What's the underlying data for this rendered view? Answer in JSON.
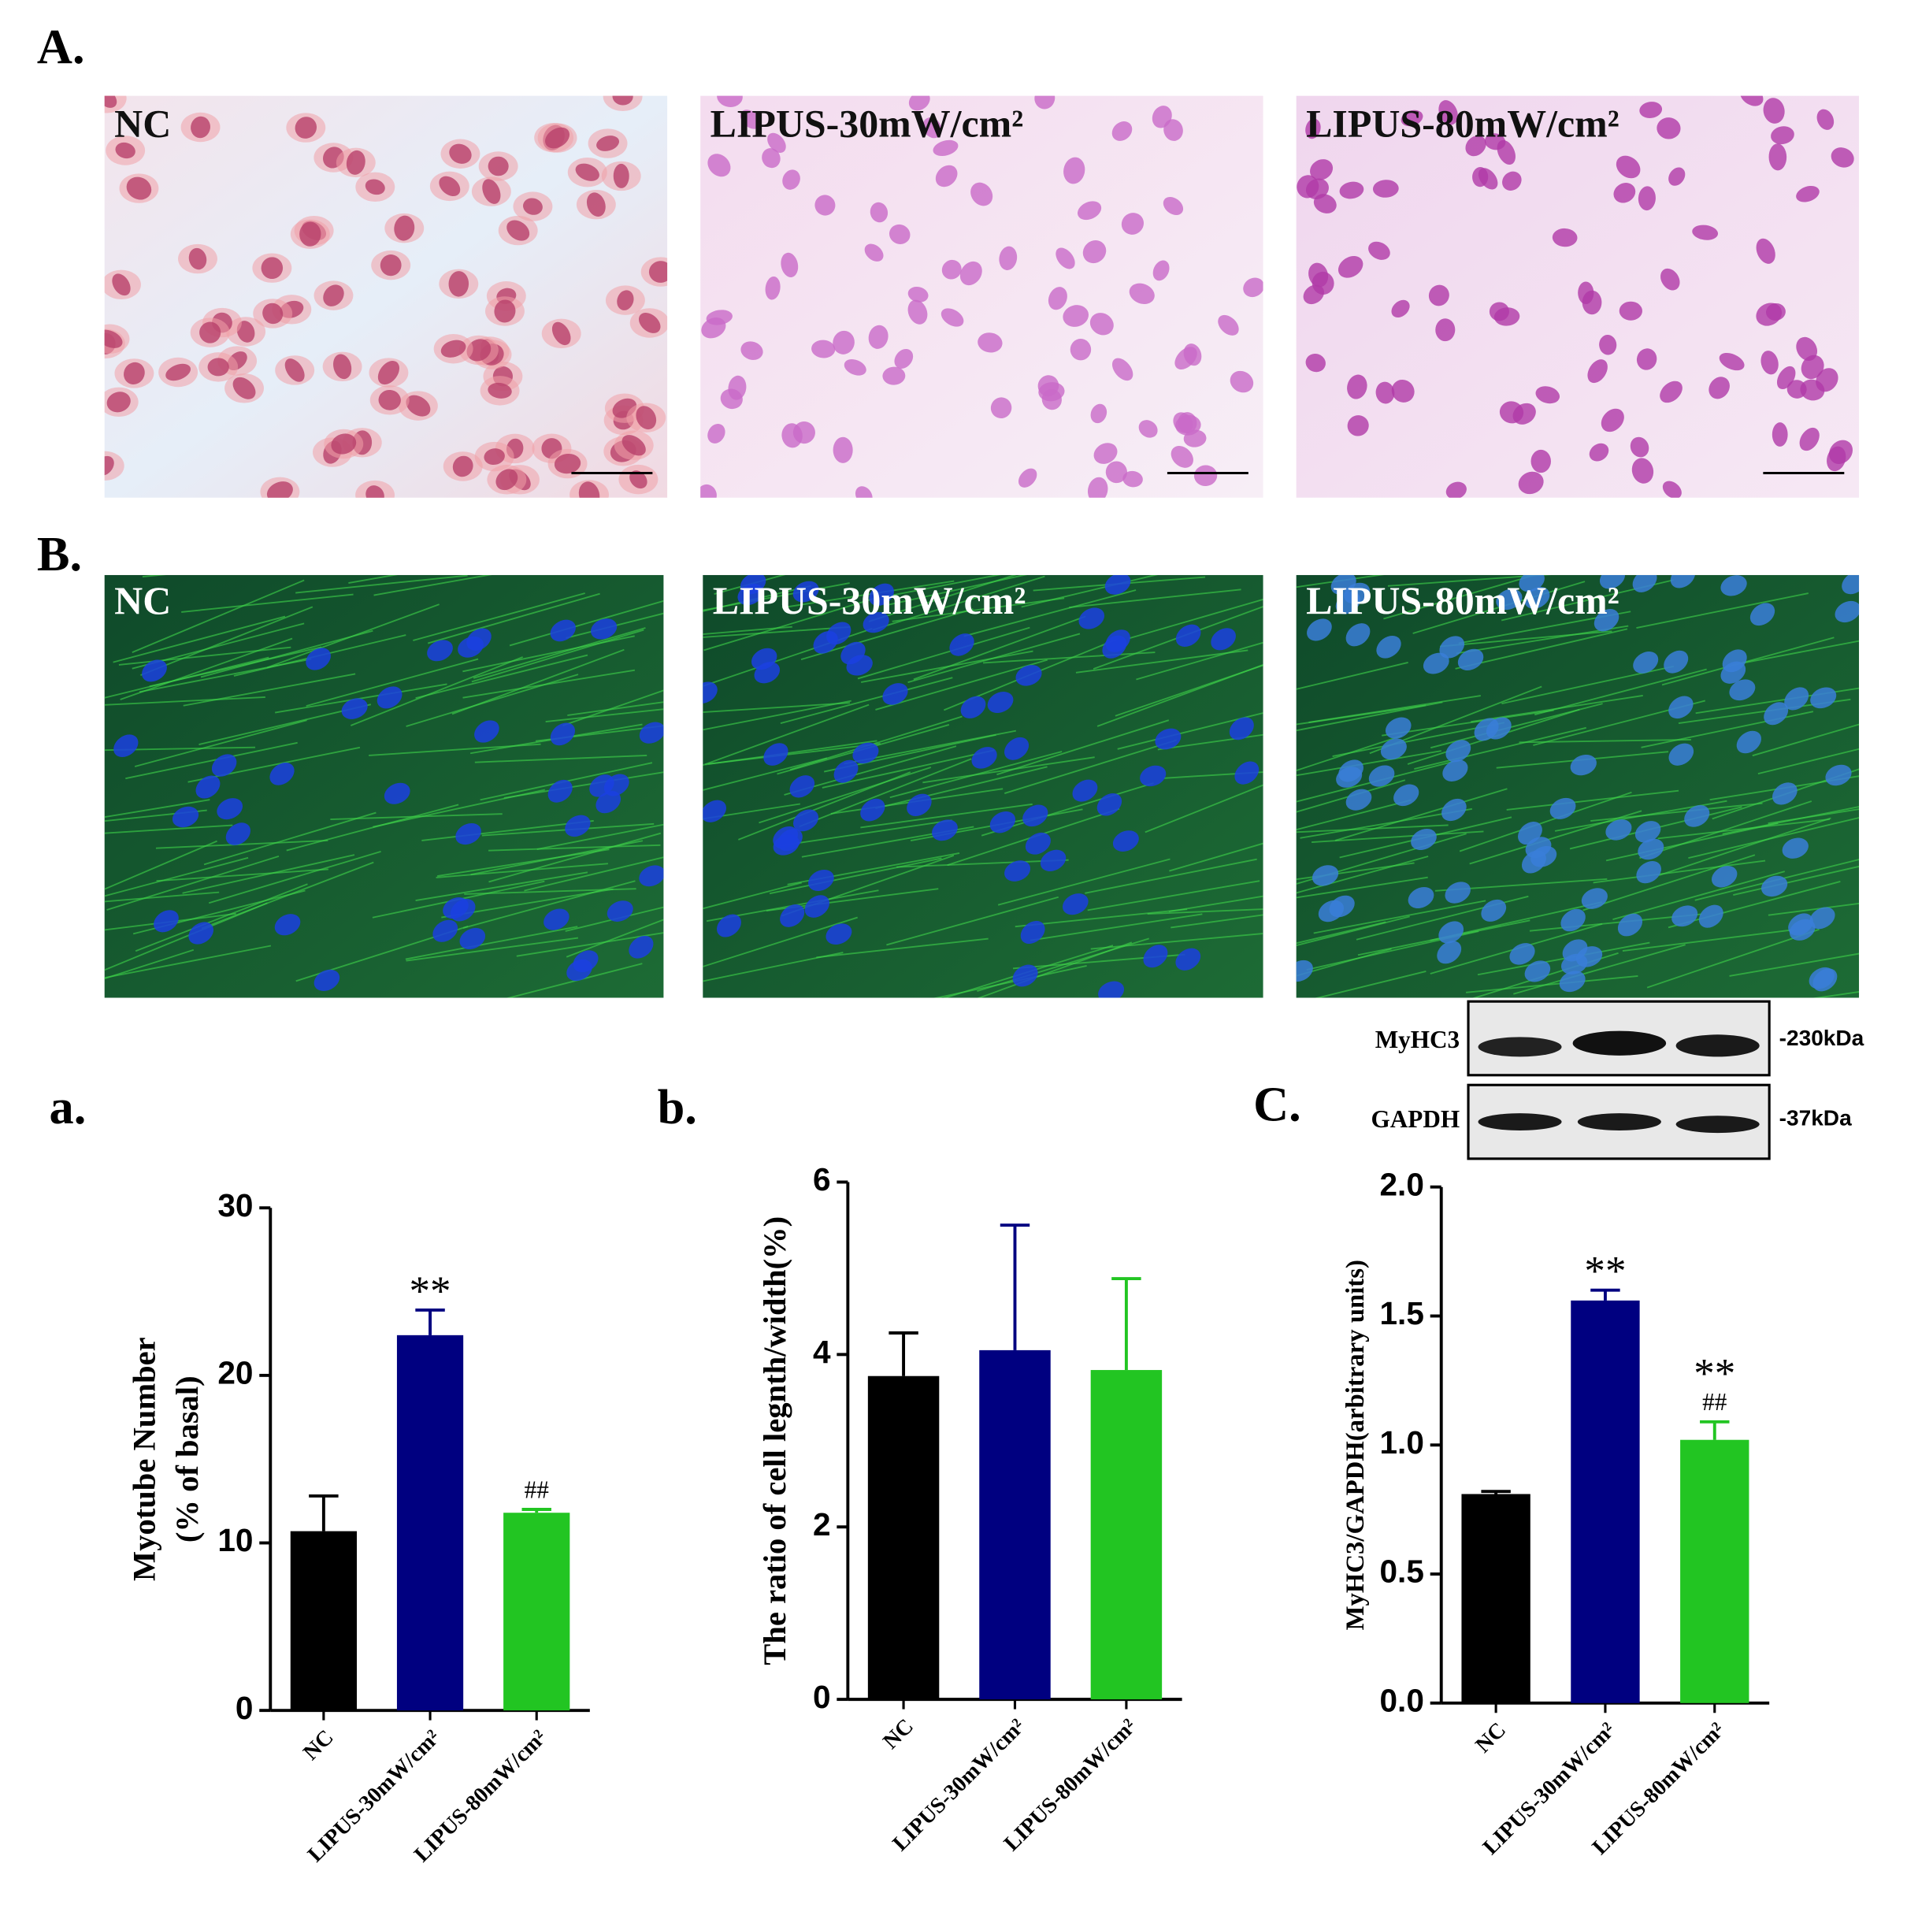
{
  "panels": {
    "A": {
      "label": "A.",
      "images": [
        "NC",
        "LIPUS-30mW/cm²",
        "LIPUS-80mW/cm²"
      ]
    },
    "B": {
      "label": "B.",
      "images": [
        "NC",
        "LIPUS-30mW/cm²",
        "LIPUS-80mW/cm²"
      ]
    },
    "C": {
      "label": "C.",
      "blot": {
        "rows": [
          "MyHC3",
          "GAPDH"
        ],
        "sizes": [
          "-230kDa",
          "-37kDa"
        ]
      }
    },
    "a": {
      "label": "a."
    },
    "b": {
      "label": "b."
    }
  },
  "chart_data": [
    {
      "type": "bar",
      "ylabel": [
        "Myotube Number",
        "(% of basal)"
      ],
      "categories": [
        "NC",
        "LIPUS-30mW/cm²",
        "LIPUS-80mW/cm²"
      ],
      "values": [
        10.7,
        22.4,
        11.8
      ],
      "errors": [
        2.1,
        1.5,
        0.2
      ],
      "colors": [
        "#000000",
        "#000080",
        "#22c522"
      ],
      "stars": [
        null,
        "**",
        null
      ],
      "hashes": [
        null,
        null,
        "##"
      ],
      "ylim": [
        0,
        30
      ],
      "yticks": [
        0,
        10,
        20,
        30
      ]
    },
    {
      "type": "bar",
      "ylabel": [
        "The ratio of cell legnth/width(%)"
      ],
      "categories": [
        "NC",
        "LIPUS-30mW/cm²",
        "LIPUS-80mW/cm²"
      ],
      "values": [
        3.75,
        4.05,
        3.82
      ],
      "errors": [
        0.5,
        1.45,
        1.06
      ],
      "colors": [
        "#000000",
        "#000080",
        "#22c522"
      ],
      "stars": [
        null,
        null,
        null
      ],
      "hashes": [
        null,
        null,
        null
      ],
      "ylim": [
        0,
        6
      ],
      "yticks": [
        0,
        2,
        4,
        6
      ]
    },
    {
      "type": "bar",
      "ylabel": [
        "MyHC3/GAPDH(arbitrary units)"
      ],
      "categories": [
        "NC",
        "LIPUS-30mW/cm²",
        "LIPUS-80mW/cm²"
      ],
      "values": [
        0.81,
        1.56,
        1.02
      ],
      "errors": [
        0.01,
        0.04,
        0.07
      ],
      "colors": [
        "#000000",
        "#000080",
        "#22c522"
      ],
      "stars": [
        null,
        "**",
        "**"
      ],
      "hashes": [
        null,
        null,
        "##"
      ],
      "ylim": [
        0,
        2
      ],
      "yticks": [
        {
          "value": 0,
          "label": "0.0"
        },
        {
          "value": 0.5,
          "label": "0.5"
        },
        {
          "value": 1,
          "label": "1.0"
        },
        {
          "value": 1.5,
          "label": "1.5"
        },
        {
          "value": 2,
          "label": "2.0"
        }
      ]
    }
  ]
}
